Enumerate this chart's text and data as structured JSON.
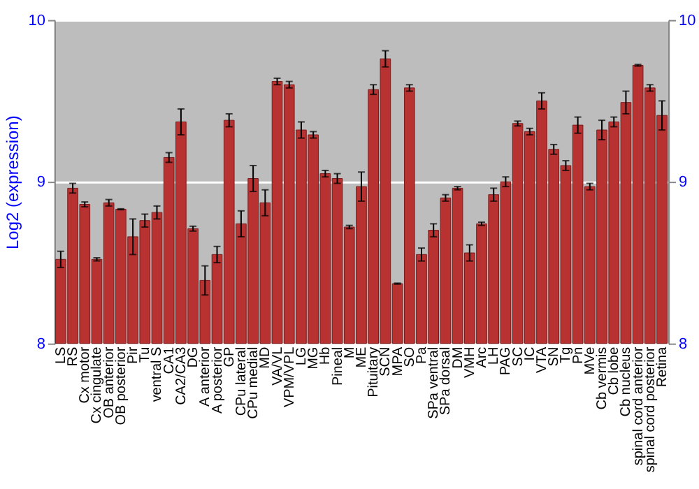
{
  "chart_data": {
    "type": "bar",
    "ylabel": "Log2 (expression)",
    "categories": [
      "LS",
      "RS",
      "Cx motor",
      "Cx cingulate",
      "OB anterior",
      "OB posterior",
      "Pir",
      "Tu",
      "ventral S",
      "CA1",
      "CA2/CA3",
      "DG",
      "A anterior",
      "A posterior",
      "GP",
      "CPu lateral",
      "CPu medial",
      "MD",
      "VA/VL",
      "VPM/VPL",
      "LG",
      "MG",
      "Hb",
      "Pineal",
      "M",
      "ME",
      "Pituitary",
      "SCN",
      "MPA",
      "SO",
      "Pa",
      "SPa ventral",
      "SPa dorsal",
      "DM",
      "VMH",
      "Arc",
      "LH",
      "PAG",
      "SC",
      "IC",
      "VTA",
      "SN",
      "Tg",
      "Pn",
      "MVe",
      "Cb vermis",
      "Cb lobe",
      "Cb nucleus",
      "spinal cord anterior",
      "spinal cord posterior",
      "Retina"
    ],
    "values": [
      8.52,
      8.96,
      8.86,
      8.52,
      8.87,
      8.83,
      8.66,
      8.76,
      8.81,
      9.15,
      9.37,
      8.71,
      8.39,
      8.55,
      9.38,
      8.74,
      9.02,
      8.87,
      9.62,
      9.6,
      9.32,
      9.29,
      9.05,
      9.02,
      8.72,
      8.97,
      9.57,
      9.76,
      8.37,
      9.58,
      8.55,
      8.7,
      8.9,
      8.96,
      8.56,
      8.74,
      8.92,
      9.0,
      9.36,
      9.31,
      9.5,
      9.2,
      9.1,
      9.35,
      8.97,
      9.32,
      9.37,
      9.49,
      9.72,
      9.58,
      9.41
    ],
    "errors": [
      0.05,
      0.03,
      0.015,
      0.01,
      0.02,
      0.003,
      0.11,
      0.04,
      0.04,
      0.03,
      0.08,
      0.015,
      0.09,
      0.05,
      0.04,
      0.08,
      0.08,
      0.08,
      0.02,
      0.02,
      0.05,
      0.02,
      0.02,
      0.03,
      0.01,
      0.09,
      0.03,
      0.05,
      0.003,
      0.02,
      0.04,
      0.04,
      0.02,
      0.01,
      0.05,
      0.01,
      0.04,
      0.03,
      0.015,
      0.02,
      0.05,
      0.03,
      0.03,
      0.05,
      0.02,
      0.06,
      0.03,
      0.07,
      0.005,
      0.02,
      0.09
    ],
    "color": "#b83232",
    "ylim": [
      8,
      10
    ],
    "yticks": [
      8,
      9,
      10
    ],
    "y2lim": [
      8,
      10
    ],
    "y2ticks": [
      8,
      9,
      10
    ],
    "grid": "y"
  }
}
